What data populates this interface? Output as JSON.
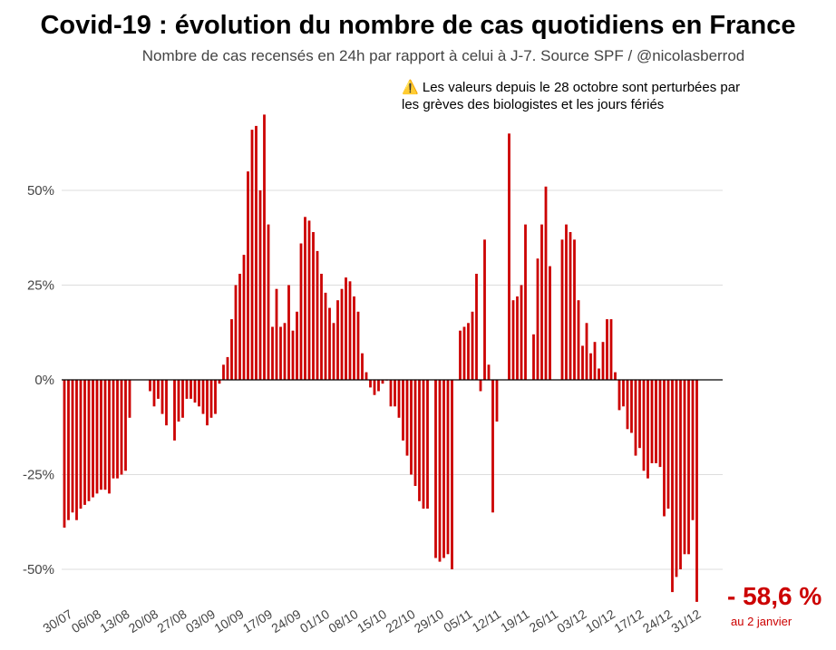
{
  "title": "Covid-19 : évolution du nombre de cas quotidiens en France",
  "subtitle": "Nombre de cas recensés en 24h par rapport à celui à J-7. Source SPF / @nicolasberrod",
  "note": {
    "icon": "warning-icon",
    "line1": "Les valeurs depuis le 28 octobre sont perturbées par",
    "line2": "les grèves des biologistes et les jours fériés"
  },
  "annotation": {
    "value": "- 58,6 %",
    "label": "au 2 janvier"
  },
  "colors": {
    "bar": "#cc0000",
    "grid": "#dddddd",
    "axis": "#000000"
  },
  "chart_data": {
    "type": "bar",
    "title": "Covid-19 : évolution du nombre de cas quotidiens en France",
    "xlabel": "",
    "ylabel": "",
    "ylim": [
      -60,
      70
    ],
    "y_ticks": [
      50,
      25,
      0,
      -25,
      -50
    ],
    "y_tick_labels": [
      "50%",
      "25%",
      "0%",
      "-25%",
      "-50%"
    ],
    "x_tick_labels": [
      "30/07",
      "06/08",
      "13/08",
      "20/08",
      "27/08",
      "03/09",
      "10/09",
      "17/09",
      "24/09",
      "01/10",
      "08/10",
      "15/10",
      "22/10",
      "29/10",
      "05/11",
      "12/11",
      "19/11",
      "26/11",
      "03/12",
      "10/12",
      "17/12",
      "24/12",
      "31/12"
    ],
    "start_date": "30/07",
    "end_date": "02/01",
    "unit": "% vs J-7",
    "values": [
      -39,
      -37,
      -35,
      -37,
      -34,
      -33,
      -32,
      -31,
      -30,
      -29,
      -29,
      -30,
      -26,
      -26,
      -25,
      -24,
      -10,
      null,
      null,
      null,
      null,
      -3,
      -7,
      -5,
      -9,
      -12,
      null,
      -16,
      -11,
      -10,
      -5,
      -5,
      -6,
      -7,
      -9,
      -12,
      -10,
      -9,
      -1,
      4,
      6,
      16,
      25,
      28,
      33,
      55,
      66,
      67,
      50,
      70,
      41,
      14,
      24,
      14,
      15,
      25,
      13,
      18,
      36,
      43,
      42,
      39,
      34,
      28,
      23,
      19,
      15,
      21,
      24,
      27,
      26,
      22,
      18,
      7,
      2,
      -2,
      -4,
      -3,
      -1,
      0,
      -7,
      -7,
      -10,
      -16,
      -20,
      -25,
      -28,
      -32,
      -34,
      -34,
      null,
      -47,
      -48,
      -47,
      -46,
      -50,
      null,
      13,
      14,
      15,
      18,
      28,
      -3,
      37,
      4,
      -35,
      -11,
      null,
      null,
      65,
      21,
      22,
      25,
      41,
      null,
      12,
      32,
      41,
      51,
      30,
      null,
      null,
      37,
      41,
      39,
      37,
      21,
      9,
      15,
      7,
      10,
      3,
      10,
      16,
      16,
      2,
      -8,
      -7,
      -13,
      -14,
      -20,
      -18,
      -24,
      -26,
      -22,
      -22,
      -23,
      -36,
      -34,
      -56,
      -52,
      -50,
      -46,
      -46,
      -37,
      -58.6
    ]
  }
}
